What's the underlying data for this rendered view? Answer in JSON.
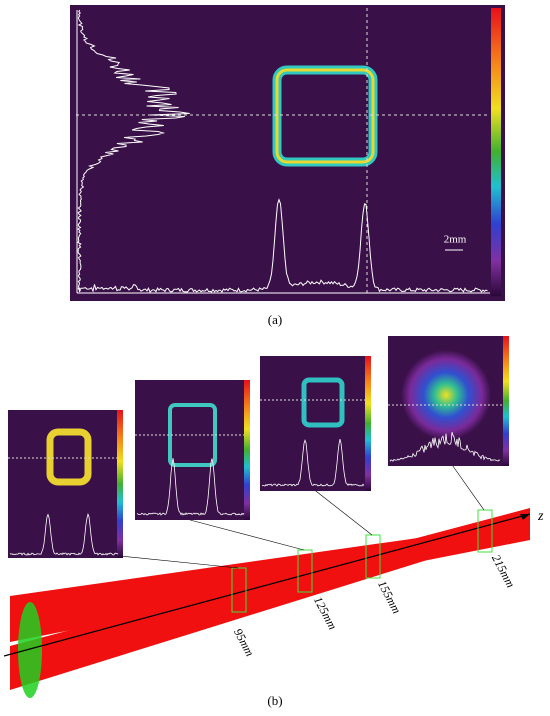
{
  "panel_a": {
    "scale_label": "2mm",
    "caption": "(a)"
  },
  "panel_b": {
    "axis_label": "z",
    "planes": [
      "95mm",
      "125mm",
      "155mm",
      "215mm"
    ],
    "caption": "(b)"
  }
}
